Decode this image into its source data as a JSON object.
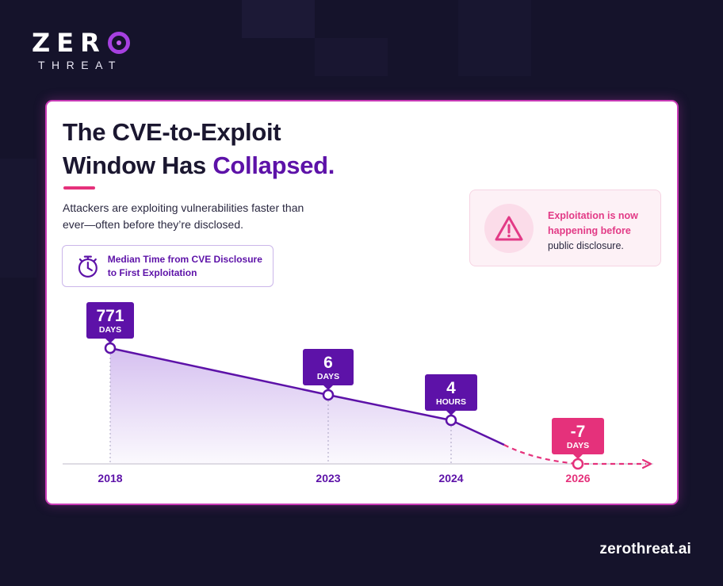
{
  "brand": {
    "word": "ZER",
    "sub": "THREAT",
    "url": "zerothreat.ai"
  },
  "card": {
    "title_line1": "The CVE-to-Exploit",
    "title_line2_prefix": "Window Has ",
    "title_line2_accent": "Collapsed.",
    "subtitle": "Attackers are exploiting vulnerabilities faster than ever—often before they’re disclosed.",
    "metric_label": "Median Time from CVE Disclosure to First Exploitation",
    "callout": {
      "line1": "Exploitation is now",
      "line2": "happening before",
      "line3": "public disclosure."
    }
  },
  "icons": {
    "stopwatch": "stopwatch-icon",
    "warning": "warning-icon",
    "arrow": "arrow-right-icon"
  },
  "colors": {
    "accent_purple": "#5d12a8",
    "accent_pink": "#e5317b",
    "background": "#15132b",
    "card_border": "#c93ab6"
  },
  "chart_data": {
    "type": "line",
    "title": "Median Time from CVE Disclosure to First Exploitation",
    "x": [
      "2018",
      "2023",
      "2024",
      "2026"
    ],
    "series": [
      {
        "points": [
          {
            "x": "2018",
            "value": "771",
            "unit": "DAYS",
            "projected": false
          },
          {
            "x": "2023",
            "value": "6",
            "unit": "DAYS",
            "projected": false
          },
          {
            "x": "2024",
            "value": "4",
            "unit": "HOURS",
            "projected": false
          },
          {
            "x": "2026",
            "value": "-7",
            "unit": "DAYS",
            "projected": true
          }
        ]
      }
    ],
    "line_style": {
      "actual": "solid",
      "projection": "dashed"
    },
    "grid": false,
    "legend": "none"
  }
}
